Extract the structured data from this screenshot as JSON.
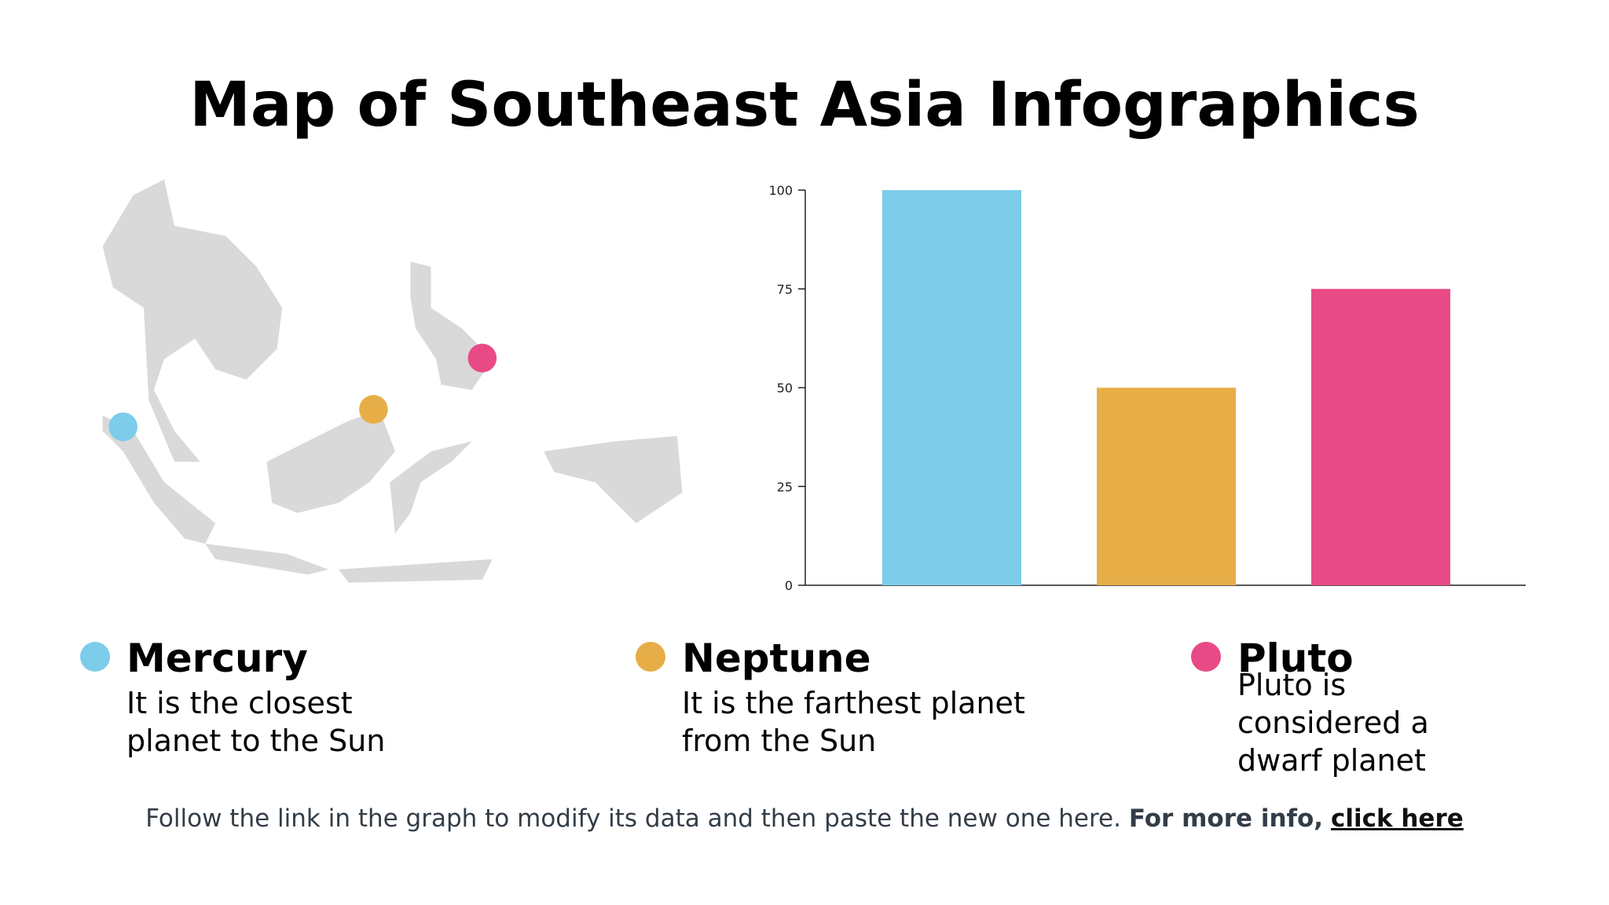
{
  "title": "Map of Southeast Asia Infographics",
  "chart_data": {
    "type": "bar",
    "categories": [
      null,
      null,
      null
    ],
    "values": [
      100,
      50,
      75
    ],
    "colors": [
      "#7cccea",
      "#e7ae47",
      "#e84a86"
    ],
    "ylim": [
      0,
      100
    ],
    "yticks": [
      0,
      25,
      50,
      75,
      100
    ]
  },
  "items": [
    {
      "name": "Mercury",
      "lines": [
        "It is the closest",
        "planet to the Sun"
      ],
      "color": "#7cccea"
    },
    {
      "name": "Neptune",
      "lines": [
        "It is the farthest planet",
        "from the Sun"
      ],
      "color": "#e7ae47"
    },
    {
      "name": "Pluto",
      "lines": [
        "Pluto is",
        "considered a",
        "dwarf planet"
      ],
      "color": "#e84a86"
    }
  ],
  "footer": {
    "text": "Follow the link in the graph to modify its data and then paste the new one here.",
    "bold": "For more info,",
    "link": "click here"
  }
}
